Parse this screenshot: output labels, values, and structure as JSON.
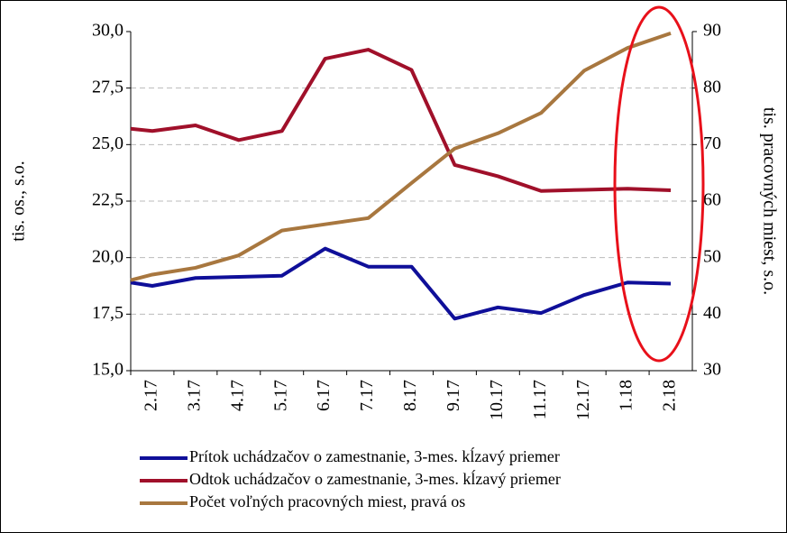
{
  "chart_data": {
    "type": "line",
    "categories": [
      null,
      "2.17",
      "3.17",
      "4.17",
      "5.17",
      "6.17",
      "7.17",
      "8.17",
      "9.17",
      "10.17",
      "11.17",
      "12.17",
      "1.18",
      "2.18"
    ],
    "series": [
      {
        "name": "Prítok uchádzačov o zamestnanie, 3-mes. kĺzavý priemer",
        "color": "#0f0f99",
        "values": [
          18.9,
          18.75,
          19.1,
          19.15,
          19.2,
          20.4,
          19.6,
          19.6,
          17.3,
          17.8,
          17.55,
          18.35,
          18.9,
          18.85
        ]
      },
      {
        "name": "Odtok uchádzačov o zamestnanie, 3-mes. kĺzavý priemer",
        "color": "#a0102a",
        "values": [
          25.7,
          25.6,
          25.85,
          25.2,
          25.6,
          28.8,
          29.2,
          28.3,
          24.1,
          23.6,
          22.95,
          23.0,
          23.05,
          22.98
        ]
      },
      {
        "name": "Počet voľných pracovných miest, pravá os",
        "color": "#a8773f",
        "axis": "y2",
        "values": [
          46,
          47,
          48.2,
          50.4,
          54.8,
          55.9,
          57,
          63.2,
          69.3,
          72,
          75.6,
          83.1,
          87.1,
          89.7
        ]
      }
    ],
    "ylabel": "tis. os., s.o.",
    "y2label": "tis. pracovných miest, s.o.",
    "ylim": [
      15,
      30
    ],
    "yticks": [
      {
        "value": 15,
        "label": "15,0"
      },
      {
        "value": 17.5,
        "label": "17,5"
      },
      {
        "value": 20,
        "label": "20,0"
      },
      {
        "value": 22.5,
        "label": "22,5"
      },
      {
        "value": 25,
        "label": "25,0"
      },
      {
        "value": 27.5,
        "label": "27,5"
      },
      {
        "value": 30,
        "label": "30,0"
      }
    ],
    "y2lim": [
      30,
      90
    ],
    "y2ticks": [
      30,
      40,
      50,
      60,
      70,
      80,
      90
    ],
    "grid": true
  }
}
